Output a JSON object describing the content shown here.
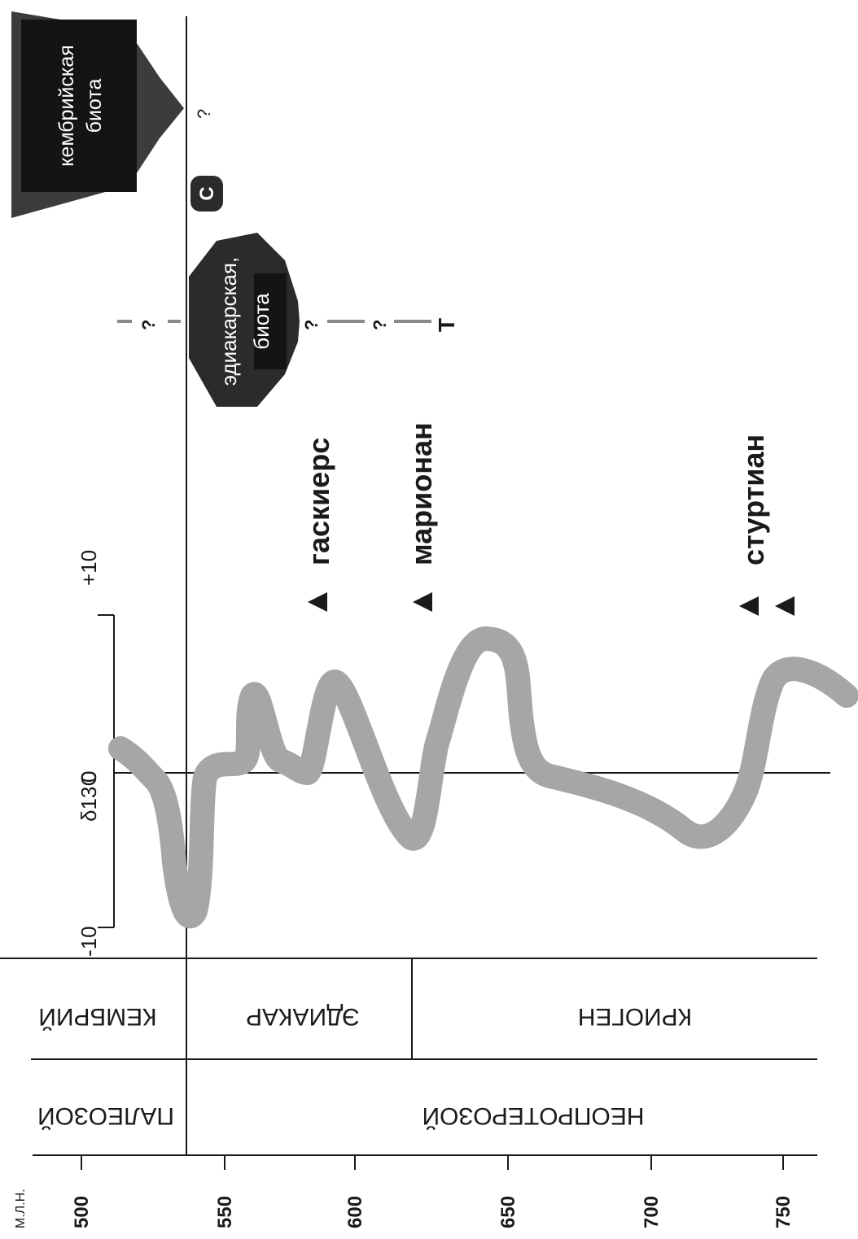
{
  "units_label": "М.Л.Н.",
  "age_ticks": [
    "500",
    "550",
    "600",
    "650",
    "700",
    "750"
  ],
  "isotope_label": "δ13C",
  "isotope_ticks": [
    "-10",
    "0",
    "+10"
  ],
  "eras": [
    {
      "label": "ПАЛЕОЗОЙ"
    },
    {
      "label": "НЕОПРОТЕРОЗОЙ"
    }
  ],
  "periods": [
    {
      "label": "КЕМБРИЙ"
    },
    {
      "label": "ЭДИАКАР"
    },
    {
      "label": "КРИОГЕН"
    }
  ],
  "glaciations": [
    {
      "label": "гаскиерс"
    },
    {
      "label": "марионан"
    },
    {
      "label": "стуртиан"
    }
  ],
  "biotas": [
    {
      "line1": "кембрийская",
      "line2": "биота"
    },
    {
      "line1": "эдиакарская,",
      "line2": "биота"
    }
  ],
  "markers": {
    "c": "C",
    "t": "T",
    "q": "?"
  },
  "colors": {
    "curve": "#a6a6a6",
    "biota": "#2b2b2b",
    "line": "#1a1a1a"
  }
}
